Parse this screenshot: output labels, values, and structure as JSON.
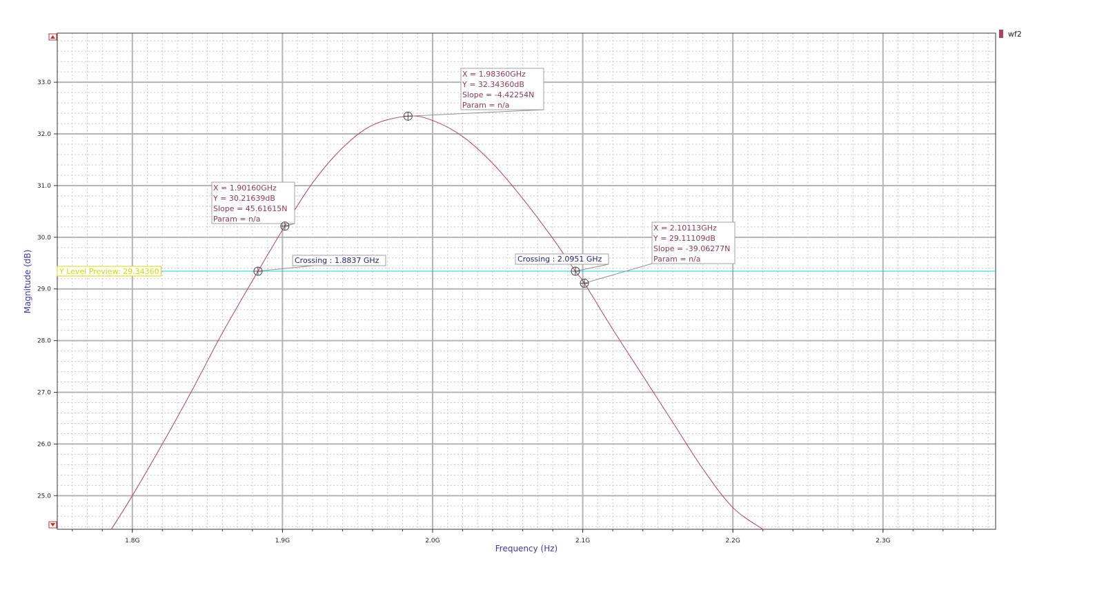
{
  "legend": {
    "label": "wf2",
    "color": "#b04060"
  },
  "chart_data": {
    "type": "line",
    "xlabel": "Frequency (Hz)",
    "ylabel": "Magnitude (dB)",
    "xlim": [
      1.75,
      2.375
    ],
    "ylim": [
      24.35,
      33.95
    ],
    "x_ticks": [
      1.8,
      1.9,
      2.0,
      2.1,
      2.2,
      2.3
    ],
    "x_tick_labels": [
      "1.8G",
      "1.9G",
      "2.0G",
      "2.1G",
      "2.2G",
      "2.3G"
    ],
    "y_ticks": [
      25.0,
      26.0,
      27.0,
      28.0,
      29.0,
      30.0,
      31.0,
      32.0,
      33.0
    ],
    "y_tick_labels": [
      "25.0",
      "26.0",
      "27.0",
      "28.0",
      "29.0",
      "30.0",
      "31.0",
      "32.0",
      "33.0"
    ],
    "grid": true,
    "line_color": "#b04060",
    "series": [
      {
        "name": "wf2",
        "x": [
          1.786,
          1.8,
          1.82,
          1.84,
          1.86,
          1.8837,
          1.9016,
          1.92,
          1.94,
          1.96,
          1.9836,
          2.0,
          2.02,
          2.04,
          2.06,
          2.08,
          2.0951,
          2.1011,
          2.12,
          2.14,
          2.16,
          2.18,
          2.2,
          2.22
        ],
        "y": [
          24.35,
          25.0,
          26.0,
          27.05,
          28.15,
          29.3436,
          30.2164,
          31.05,
          31.73,
          32.17,
          32.3436,
          32.26,
          31.95,
          31.43,
          30.75,
          29.98,
          29.3436,
          29.1111,
          28.22,
          27.32,
          26.42,
          25.52,
          24.77,
          24.35
        ]
      }
    ],
    "y_level": {
      "value": 29.3436,
      "label": "Y Level Preview: 29.34360",
      "color": "#00d8e0"
    },
    "markers": [
      {
        "x": 1.9016,
        "y": 30.2164,
        "lines": [
          "X = 1.90160GHz",
          "Y = 30.21639dB",
          "Slope = 45.61615N",
          "Param = n/a"
        ]
      },
      {
        "x": 1.9836,
        "y": 32.3436,
        "lines": [
          "X = 1.98360GHz",
          "Y = 32.34360dB",
          "Slope = -4.42254N",
          "Param = n/a"
        ]
      },
      {
        "x": 2.1011,
        "y": 29.1111,
        "lines": [
          "X = 2.10113GHz",
          "Y = 29.11109dB",
          "Slope = -39.06277N",
          "Param = n/a"
        ]
      }
    ],
    "crossings": [
      {
        "x": 1.8837,
        "y": 29.3436,
        "label": "Crossing : 1.8837 GHz"
      },
      {
        "x": 2.0951,
        "y": 29.3436,
        "label": "Crossing : 2.0951 GHz"
      }
    ]
  }
}
